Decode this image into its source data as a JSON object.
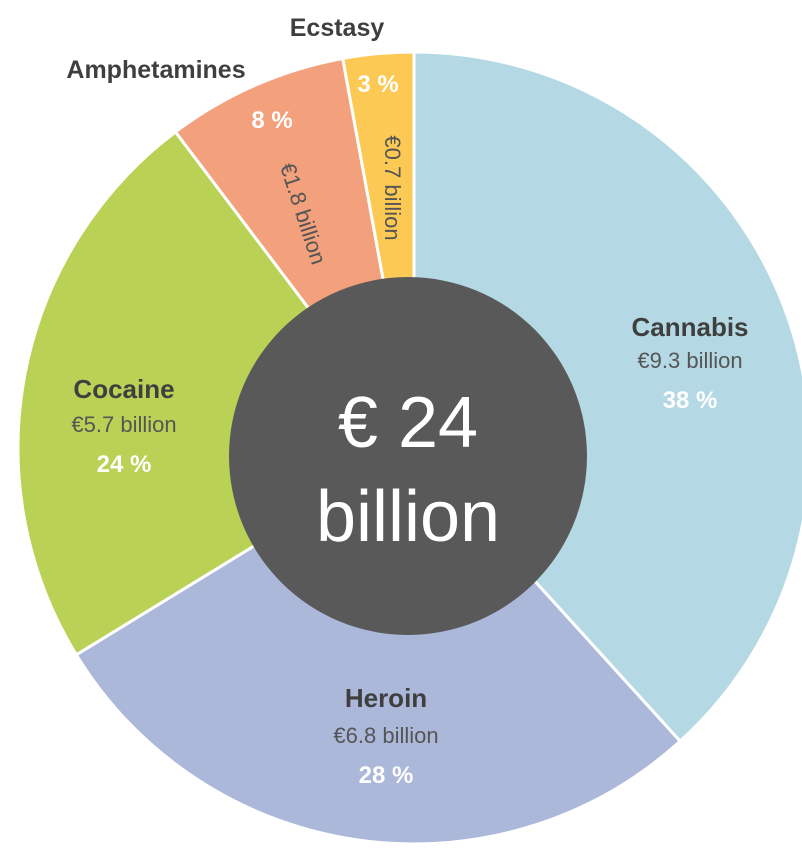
{
  "chart_data": {
    "type": "pie",
    "center_label": {
      "line1": "€ 24",
      "line2": "billion"
    },
    "colors": {
      "Cannabis": "#b5d9e4",
      "Heroin": "#abb8da",
      "Cocaine": "#b9d256",
      "Amphetamines": "#f3a07c",
      "Ecstasy": "#fbc954",
      "center": "#595959"
    },
    "slices": [
      {
        "name": "Cannabis",
        "amount": "€9.3 billion",
        "percent_label": "38 %",
        "value": 9.3
      },
      {
        "name": "Heroin",
        "amount": "€6.8 billion",
        "percent_label": "28 %",
        "value": 6.8
      },
      {
        "name": "Cocaine",
        "amount": "€5.7 billion",
        "percent_label": "24 %",
        "value": 5.7
      },
      {
        "name": "Amphetamines",
        "amount": "€1.8 billion",
        "percent_label": "8 %",
        "value": 1.8
      },
      {
        "name": "Ecstasy",
        "amount": "€0.7 billion",
        "percent_label": "3 %",
        "value": 0.7
      }
    ]
  }
}
